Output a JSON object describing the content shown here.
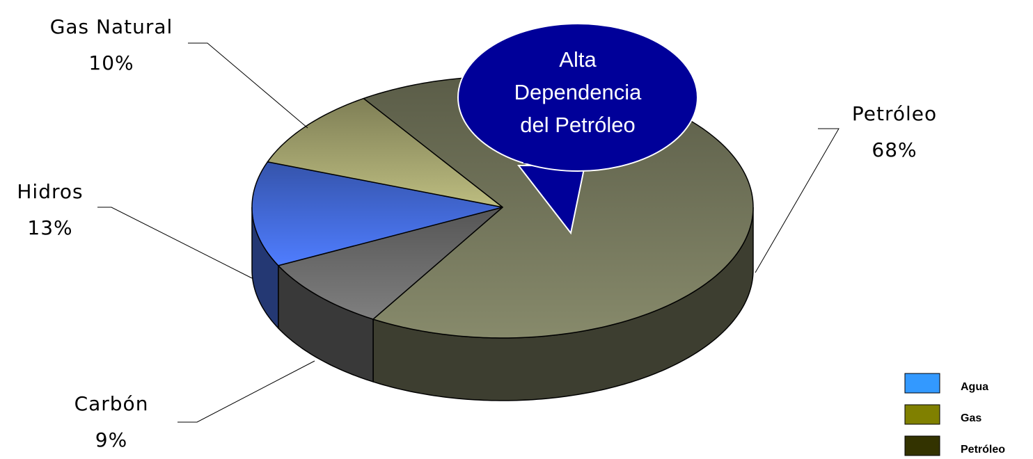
{
  "chart_data": {
    "type": "pie3d",
    "categories": [
      "Petróleo",
      "Carbón",
      "Hidros",
      "Gas Natural"
    ],
    "values": [
      68,
      9,
      13,
      10
    ],
    "value_labels": [
      "68%",
      "9%",
      "13%",
      "10%"
    ],
    "colors": [
      "#878a6b",
      "#7f7f7f",
      "#4f7dff",
      "#bdbd80"
    ],
    "annotation": [
      "Alta",
      "Dependencia",
      "del Petróleo"
    ],
    "legend": {
      "position": "bottom-right",
      "entries": [
        {
          "name": "Agua",
          "color": "#3399ff"
        },
        {
          "name": "Gas",
          "color": "#808000"
        },
        {
          "name": "Petróleo",
          "color": "#333300"
        }
      ]
    }
  }
}
